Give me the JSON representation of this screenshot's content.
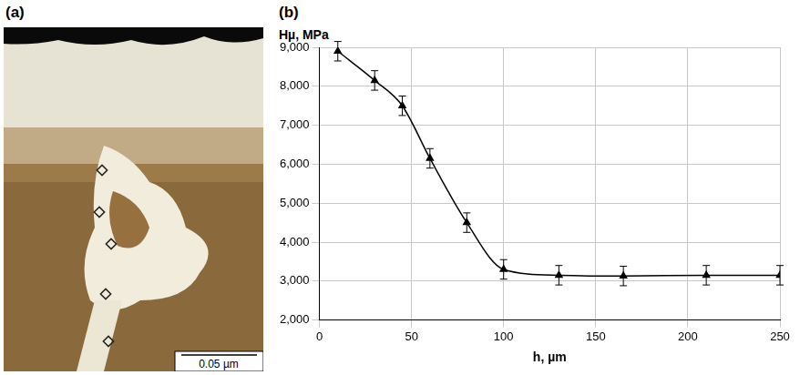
{
  "panel_a": {
    "label": "(a)",
    "scale_bar": "0.05 µm"
  },
  "chart_data": {
    "type": "line",
    "panel": "(b)",
    "x_label": "h, µm",
    "y_label": "Hµ, MPa",
    "x": [
      10,
      30,
      45,
      60,
      80,
      100,
      130,
      165,
      210,
      250
    ],
    "series": [
      {
        "name": "Hµ",
        "color": "#000000",
        "marker": "triangle",
        "line_style": "solid",
        "values": [
          8900,
          8150,
          7500,
          6150,
          4500,
          3300,
          3150,
          3130,
          3150,
          3150
        ],
        "errors": [
          250,
          250,
          250,
          250,
          250,
          250,
          250,
          250,
          250,
          250
        ]
      }
    ],
    "xlim": [
      0,
      250
    ],
    "xticks": [
      0,
      50,
      100,
      150,
      200,
      250
    ],
    "ylim": [
      2000,
      9000
    ],
    "yticks": [
      2000,
      3000,
      4000,
      5000,
      6000,
      7000,
      8000,
      9000
    ],
    "grid": true
  }
}
